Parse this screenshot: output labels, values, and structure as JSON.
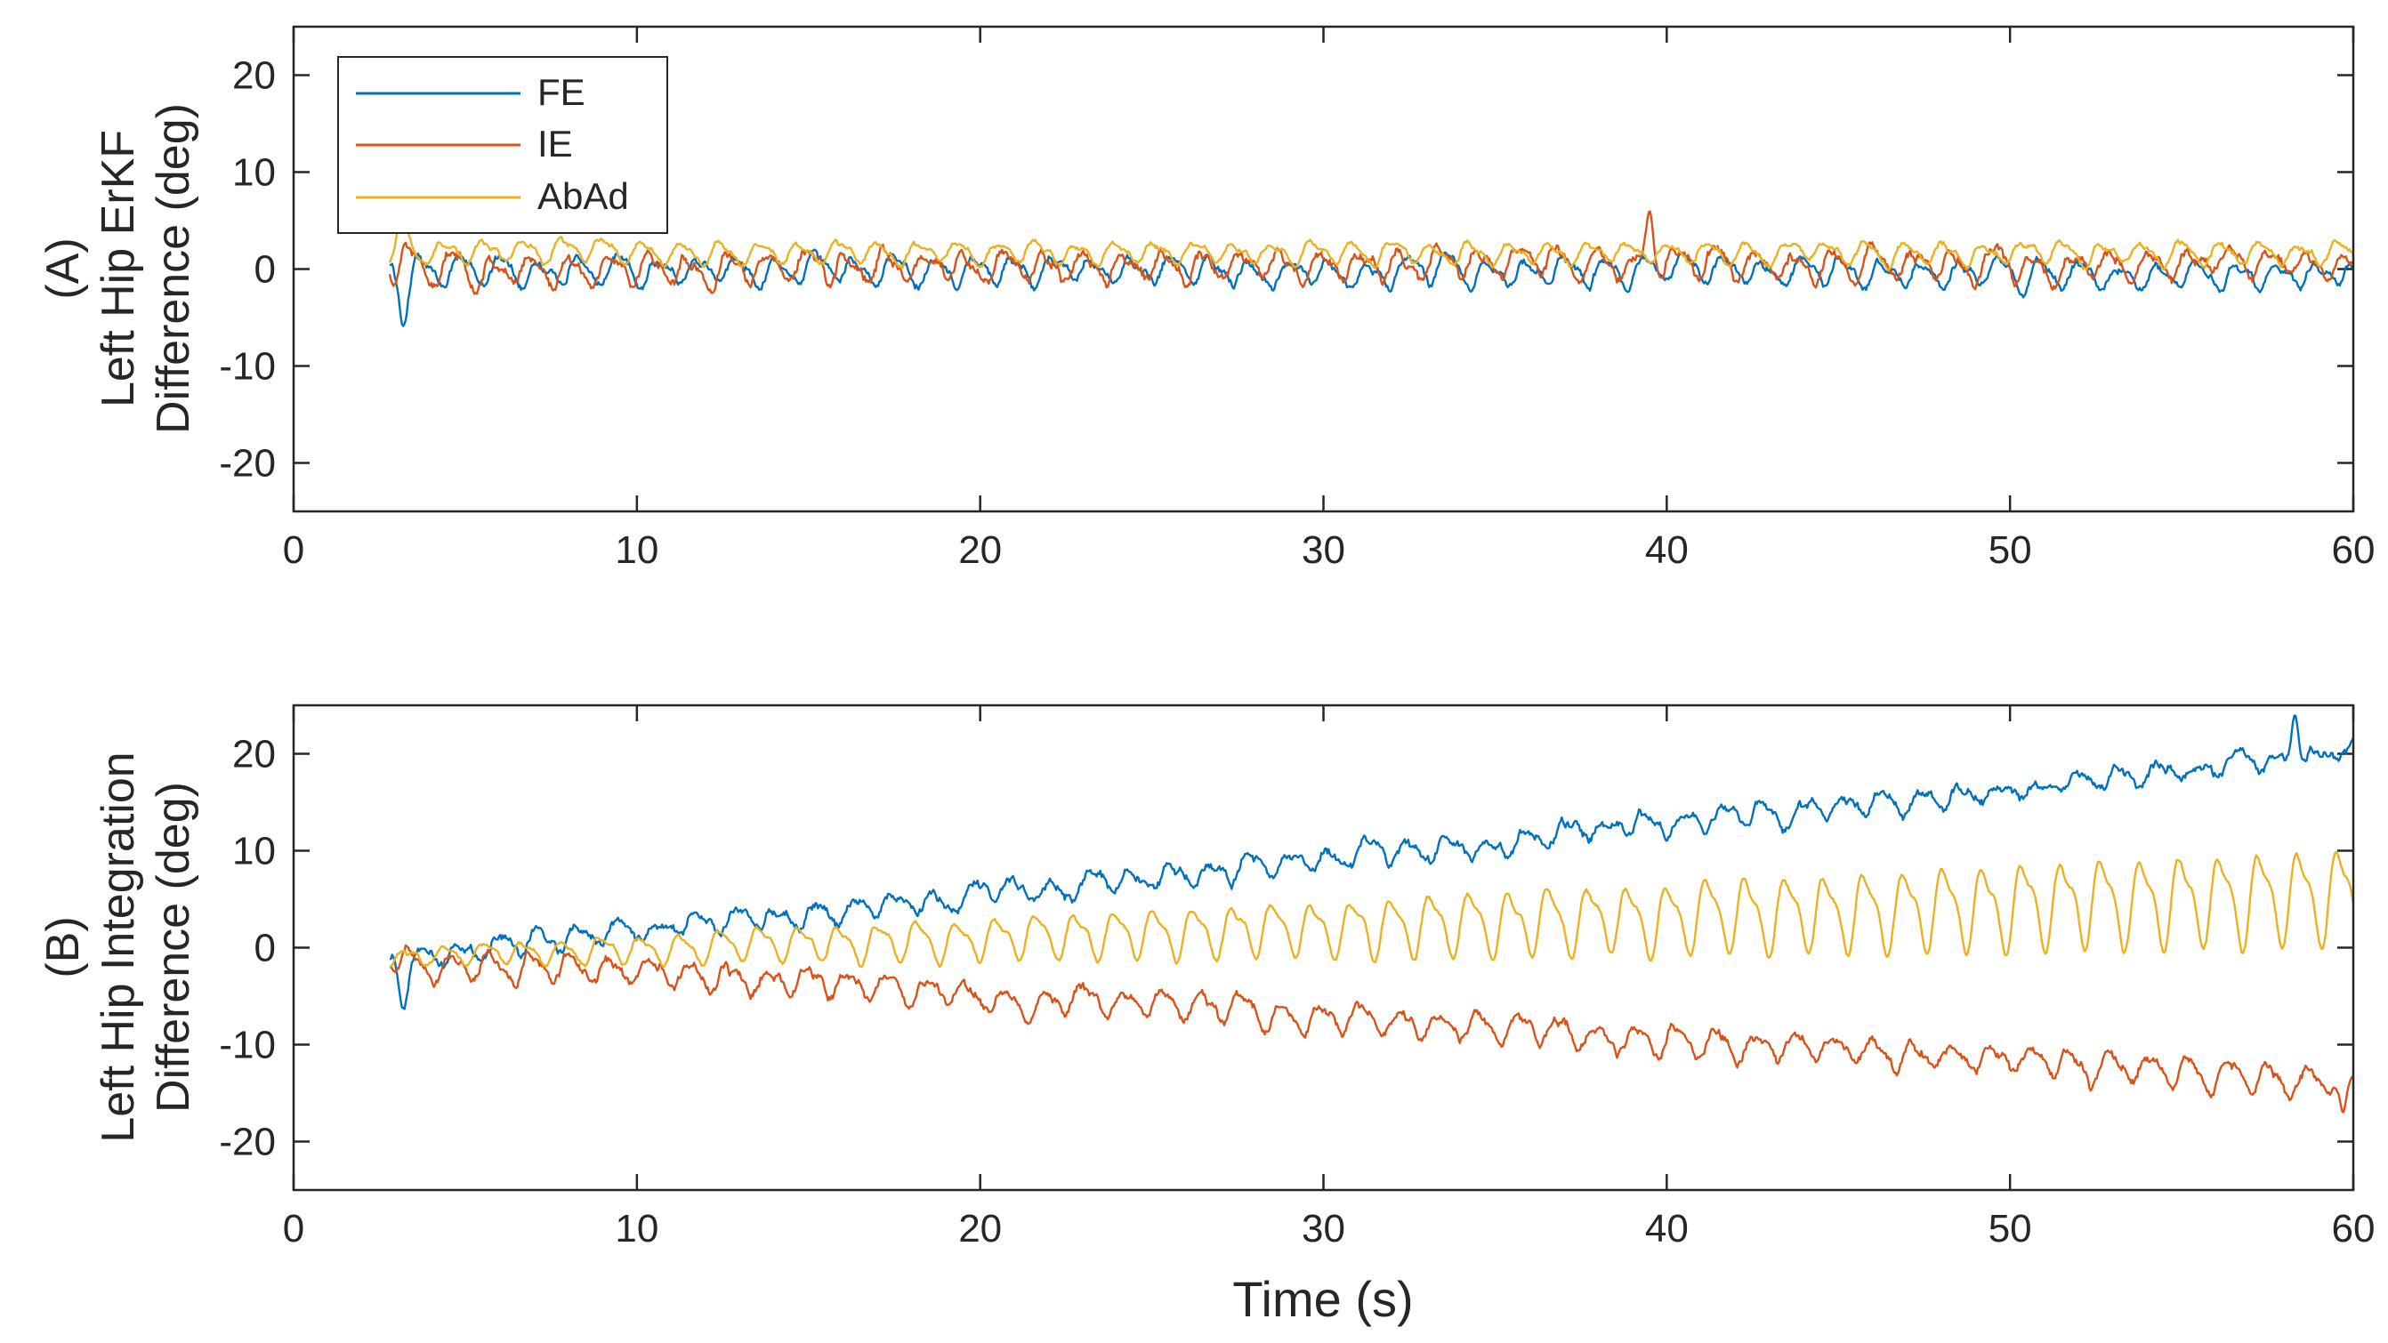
{
  "colors": {
    "FE": "#0072BD",
    "IE": "#D95319",
    "AbAd": "#EDB120",
    "axis": "#262626"
  },
  "chart_data": [
    {
      "id": "A",
      "type": "line",
      "panel_label": "(A)",
      "ylabel_line1": "Left Hip ErKF",
      "ylabel_line2": "Difference (deg)",
      "xlabel": "",
      "xlim": [
        0,
        60
      ],
      "ylim": [
        -25,
        25
      ],
      "xticks": [
        "0",
        "10",
        "20",
        "30",
        "40",
        "50",
        "60"
      ],
      "yticks": [
        "-20",
        "-10",
        "0",
        "10",
        "20"
      ],
      "legend": {
        "entries": [
          "FE",
          "IE",
          "AbAd"
        ],
        "location": "top-left"
      },
      "series": [
        {
          "name": "FE",
          "x_start": 2.8,
          "x_end": 60,
          "mean_start": 0,
          "mean_end": -0.5,
          "amplitude": 1.2,
          "period": 1.15,
          "noise": 0.6,
          "start_spike": -4
        },
        {
          "name": "IE",
          "x_start": 2.8,
          "x_end": 60,
          "mean_start": 0,
          "mean_end": 0.8,
          "amplitude": 1.3,
          "period": 1.15,
          "noise": 0.8,
          "start_spike": 3,
          "peak_x": 39.5,
          "peak_y": 6
        },
        {
          "name": "AbAd",
          "x_start": 2.8,
          "x_end": 60,
          "mean_start": 1.8,
          "mean_end": 1.6,
          "amplitude": 1.0,
          "period": 1.15,
          "noise": 0.4,
          "start_spike": 3
        }
      ]
    },
    {
      "id": "B",
      "type": "line",
      "panel_label": "(B)",
      "ylabel_line1": "Left Hip Integration",
      "ylabel_line2": "Difference (deg)",
      "xlabel": "Time (s)",
      "xlim": [
        0,
        60
      ],
      "ylim": [
        -25,
        25
      ],
      "xticks": [
        "0",
        "10",
        "20",
        "30",
        "40",
        "50",
        "60"
      ],
      "yticks": [
        "-20",
        "-10",
        "0",
        "10",
        "20"
      ],
      "series": [
        {
          "name": "FE",
          "x_start": 2.8,
          "x_end": 60,
          "mean_start": -1,
          "mean_end": 20,
          "amplitude": 0.9,
          "period": 1.15,
          "noise": 0.7,
          "start_spike": -4,
          "peak_x": 58.3,
          "peak_y": 24
        },
        {
          "name": "IE",
          "x_start": 2.8,
          "x_end": 60,
          "mean_start": -1,
          "mean_end": -14,
          "amplitude": 1.2,
          "period": 1.15,
          "noise": 0.7,
          "start_spike": 0,
          "peak_x": 59.7,
          "peak_y": -17
        },
        {
          "name": "AbAd",
          "x_start": 2.8,
          "x_end": 60,
          "mean_start": -1,
          "mean_end": 5.5,
          "amplitude_start": 0.8,
          "amplitude_end": 4.5,
          "period": 1.15,
          "noise": 0.3,
          "start_spike": 0
        }
      ]
    }
  ]
}
